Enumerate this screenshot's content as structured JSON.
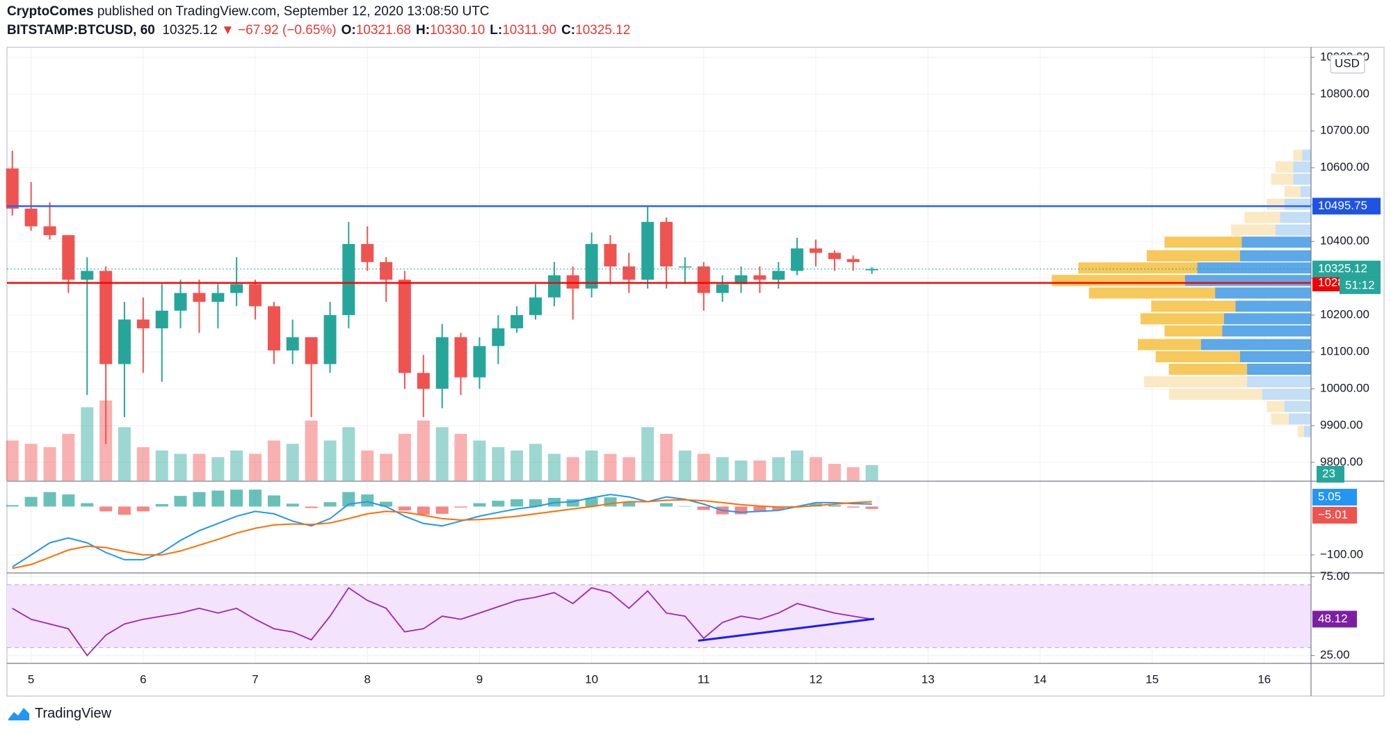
{
  "header": {
    "author": "CryptoComes",
    "published": "published on TradingView.com, September 12, 2020 13:08:50 UTC",
    "symbol": "BITSTAMP:BTCUSD, 60",
    "last": "10325.12",
    "change": "▼ −67.92 (−0.65%)",
    "ohlc": [
      {
        "key": "O:",
        "value": "10321.68"
      },
      {
        "key": "H:",
        "value": "10330.10"
      },
      {
        "key": "L:",
        "value": "10311.90"
      },
      {
        "key": "C:",
        "value": "10325.12"
      }
    ]
  },
  "chart_data": [
    {
      "type": "candlestick",
      "currency": "USD",
      "x": [
        4.833,
        5,
        5.167,
        5.333,
        5.5,
        5.667,
        5.833,
        6,
        6.167,
        6.333,
        6.5,
        6.667,
        6.833,
        7,
        7.167,
        7.333,
        7.5,
        7.667,
        7.833,
        8,
        8.167,
        8.333,
        8.5,
        8.667,
        8.833,
        9,
        9.167,
        9.333,
        9.5,
        9.667,
        9.833,
        10,
        10.167,
        10.333,
        10.5,
        10.667,
        10.833,
        11,
        11.167,
        11.333,
        11.5,
        11.667,
        11.833,
        12,
        12.167,
        12.333,
        12.5
      ],
      "open": [
        10598,
        10489,
        10441,
        10417,
        10296,
        10320,
        10067,
        10188,
        10164,
        10212,
        10260,
        10236,
        10260,
        10284,
        10224,
        10104,
        10140,
        10067,
        10200,
        10393,
        10344,
        10296,
        10043,
        10000,
        10140,
        10031,
        10116,
        10164,
        10200,
        10248,
        10308,
        10272,
        10393,
        10332,
        10296,
        10453,
        10332,
        10332,
        10260,
        10284,
        10308,
        10296,
        10320,
        10381,
        10369,
        10352,
        10321.68
      ],
      "high": [
        10646,
        10561,
        10506,
        10417,
        10357,
        10332,
        10236,
        10248,
        10284,
        10296,
        10296,
        10284,
        10357,
        10296,
        10236,
        10188,
        10140,
        10236,
        10453,
        10441,
        10357,
        10320,
        10092,
        10176,
        10152,
        10140,
        10200,
        10224,
        10284,
        10344,
        10332,
        10424,
        10417,
        10369,
        10496,
        10465,
        10357,
        10344,
        10308,
        10332,
        10332,
        10344,
        10410,
        10405,
        10376,
        10362,
        10330.1
      ],
      "low": [
        10470,
        10429,
        10405,
        10260,
        9983,
        9850,
        9923,
        10043,
        10019,
        10164,
        10152,
        10164,
        10224,
        10188,
        10067,
        10067,
        9923,
        10043,
        10164,
        10320,
        10236,
        10000,
        9923,
        9947,
        9983,
        10000,
        10067,
        10152,
        10188,
        10224,
        10188,
        10248,
        10284,
        10260,
        10272,
        10272,
        10284,
        10212,
        10236,
        10260,
        10260,
        10272,
        10308,
        10332,
        10320,
        10320,
        10311.9
      ],
      "close": [
        10489,
        10441,
        10417,
        10296,
        10320,
        10067,
        10188,
        10164,
        10212,
        10260,
        10236,
        10260,
        10284,
        10224,
        10104,
        10140,
        10067,
        10200,
        10393,
        10344,
        10296,
        10043,
        10000,
        10140,
        10031,
        10116,
        10164,
        10200,
        10248,
        10308,
        10272,
        10393,
        10332,
        10296,
        10453,
        10332,
        10332,
        10260,
        10284,
        10308,
        10296,
        10320,
        10381,
        10369,
        10352,
        10344,
        10325.12
      ],
      "up_color": "#26a69a",
      "down_color": "#ef5350",
      "xlim": [
        4.785,
        16.417
      ],
      "xticks": [
        5,
        6,
        7,
        8,
        9,
        10,
        11,
        12,
        13,
        14,
        15,
        16
      ],
      "ylim": [
        9751,
        10927
      ],
      "yticks": [
        {
          "value": 9800,
          "label": "9800.00"
        },
        {
          "value": 9900,
          "label": "9900.00"
        },
        {
          "value": 10000,
          "label": "10000.00"
        },
        {
          "value": 10100,
          "label": "10100.00"
        },
        {
          "value": 10200,
          "label": "10200.00"
        },
        {
          "value": 10300,
          "label": "10300.00"
        },
        {
          "value": 10400,
          "label": "10400.00"
        },
        {
          "value": 10500,
          "label": "10500.00"
        },
        {
          "value": 10600,
          "label": "10600.00"
        },
        {
          "value": 10700,
          "label": "10700.00"
        },
        {
          "value": 10800,
          "label": "10800.00"
        },
        {
          "value": 10900,
          "label": "10900.00"
        }
      ],
      "grid": true,
      "hlines": [
        {
          "value": 10495.75,
          "color": "#2962ff"
        },
        {
          "value": 10287.27,
          "color": "#ff0000"
        }
      ],
      "countdown": "51:12",
      "volume": {
        "values": [
          60,
          55,
          50,
          70,
          110,
          120,
          80,
          50,
          45,
          40,
          40,
          35,
          45,
          40,
          60,
          55,
          90,
          60,
          80,
          45,
          40,
          70,
          90,
          80,
          70,
          60,
          50,
          45,
          55,
          40,
          35,
          45,
          40,
          35,
          80,
          70,
          45,
          40,
          35,
          30,
          30,
          35,
          45,
          35,
          25,
          20,
          23
        ],
        "vlim": [
          0,
          650
        ]
      },
      "volume_profile": {
        "prices": [
          10634,
          10602,
          10569,
          10535,
          10501,
          10465,
          10431,
          10398,
          10361,
          10328,
          10294,
          10260,
          10224,
          10190,
          10157,
          10120,
          10087,
          10053,
          10019,
          9985,
          9952,
          9918,
          9884
        ],
        "buy": [
          10,
          20,
          20,
          12,
          30,
          35,
          40,
          78,
          80,
          128,
          142,
          108,
          85,
          98,
          100,
          124,
          80,
          72,
          72,
          55,
          30,
          25,
          8
        ],
        "sell": [
          10,
          20,
          25,
          18,
          20,
          40,
          50,
          87,
          105,
          134,
          150,
          142,
          95,
          94,
          65,
          71,
          95,
          88,
          116,
          105,
          20,
          20,
          7
        ],
        "xlim": [
          0,
          300
        ],
        "value_area": [
          10040,
          10420
        ],
        "buy_color": "#5ca8e8",
        "sell_color": "#f7c85a",
        "buy_color_outside": "#c3def5",
        "sell_color_outside": "#fbe9c4"
      }
    },
    {
      "type": "macd",
      "ylim": [
        -136,
        51
      ],
      "yticks": [
        {
          "value": -100,
          "label": "−100.00"
        }
      ],
      "series": [
        {
          "name": "MACD",
          "color": "#2196f3",
          "values": [
            -125,
            -100,
            -75,
            -65,
            -75,
            -95,
            -110,
            -110,
            -95,
            -70,
            -50,
            -35,
            -20,
            -10,
            -15,
            -30,
            -40,
            -25,
            5,
            10,
            0,
            -20,
            -35,
            -40,
            -30,
            -20,
            -12,
            -5,
            0,
            8,
            10,
            18,
            25,
            20,
            10,
            20,
            15,
            5,
            -8,
            -12,
            -10,
            -8,
            0,
            8,
            8,
            6,
            5.05
          ]
        },
        {
          "name": "Signal",
          "color": "#ff6d00",
          "values": [
            -128,
            -120,
            -105,
            -90,
            -82,
            -85,
            -93,
            -100,
            -100,
            -92,
            -80,
            -68,
            -55,
            -45,
            -38,
            -36,
            -37,
            -34,
            -25,
            -15,
            -10,
            -12,
            -18,
            -25,
            -28,
            -27,
            -24,
            -20,
            -15,
            -10,
            -5,
            0,
            6,
            10,
            10,
            13,
            14,
            12,
            8,
            4,
            1,
            -1,
            -1,
            2,
            5,
            8,
            10.06
          ]
        }
      ],
      "histogram": {
        "values": [
          3,
          20,
          30,
          25,
          7,
          -10,
          -17,
          -10,
          5,
          22,
          30,
          33,
          35,
          35,
          23,
          6,
          -3,
          9,
          30,
          25,
          10,
          -8,
          -17,
          -15,
          -2,
          7,
          12,
          15,
          15,
          18,
          15,
          18,
          19,
          10,
          0,
          7,
          1,
          -7,
          -16,
          -16,
          -11,
          -7,
          1,
          6,
          3,
          -2,
          -5.01
        ],
        "last_label": "−5.01",
        "up_color": "#26a69a",
        "down_color": "#ef5350"
      }
    },
    {
      "type": "line",
      "ylim": [
        20,
        77
      ],
      "yticks": [
        {
          "value": 75,
          "label": "75.00"
        },
        {
          "value": 25,
          "label": "25.00"
        }
      ],
      "band": [
        30,
        70
      ],
      "band_color": "#f4e3fd",
      "values": [
        55,
        48,
        45,
        42,
        25,
        38,
        45,
        48,
        50,
        52,
        55,
        52,
        55,
        48,
        42,
        40,
        35,
        50,
        68,
        60,
        55,
        40,
        42,
        50,
        48,
        52,
        56,
        60,
        62,
        65,
        58,
        68,
        65,
        55,
        66,
        52,
        50,
        36,
        46,
        50,
        48,
        52,
        58,
        55,
        52,
        50,
        48.12
      ],
      "color": "#9c27b0",
      "trendline": {
        "x": [
          10.95,
          12.52
        ],
        "values": [
          34.4,
          48.3
        ],
        "color": "#1a1aff"
      }
    }
  ],
  "footer": "TradingView"
}
